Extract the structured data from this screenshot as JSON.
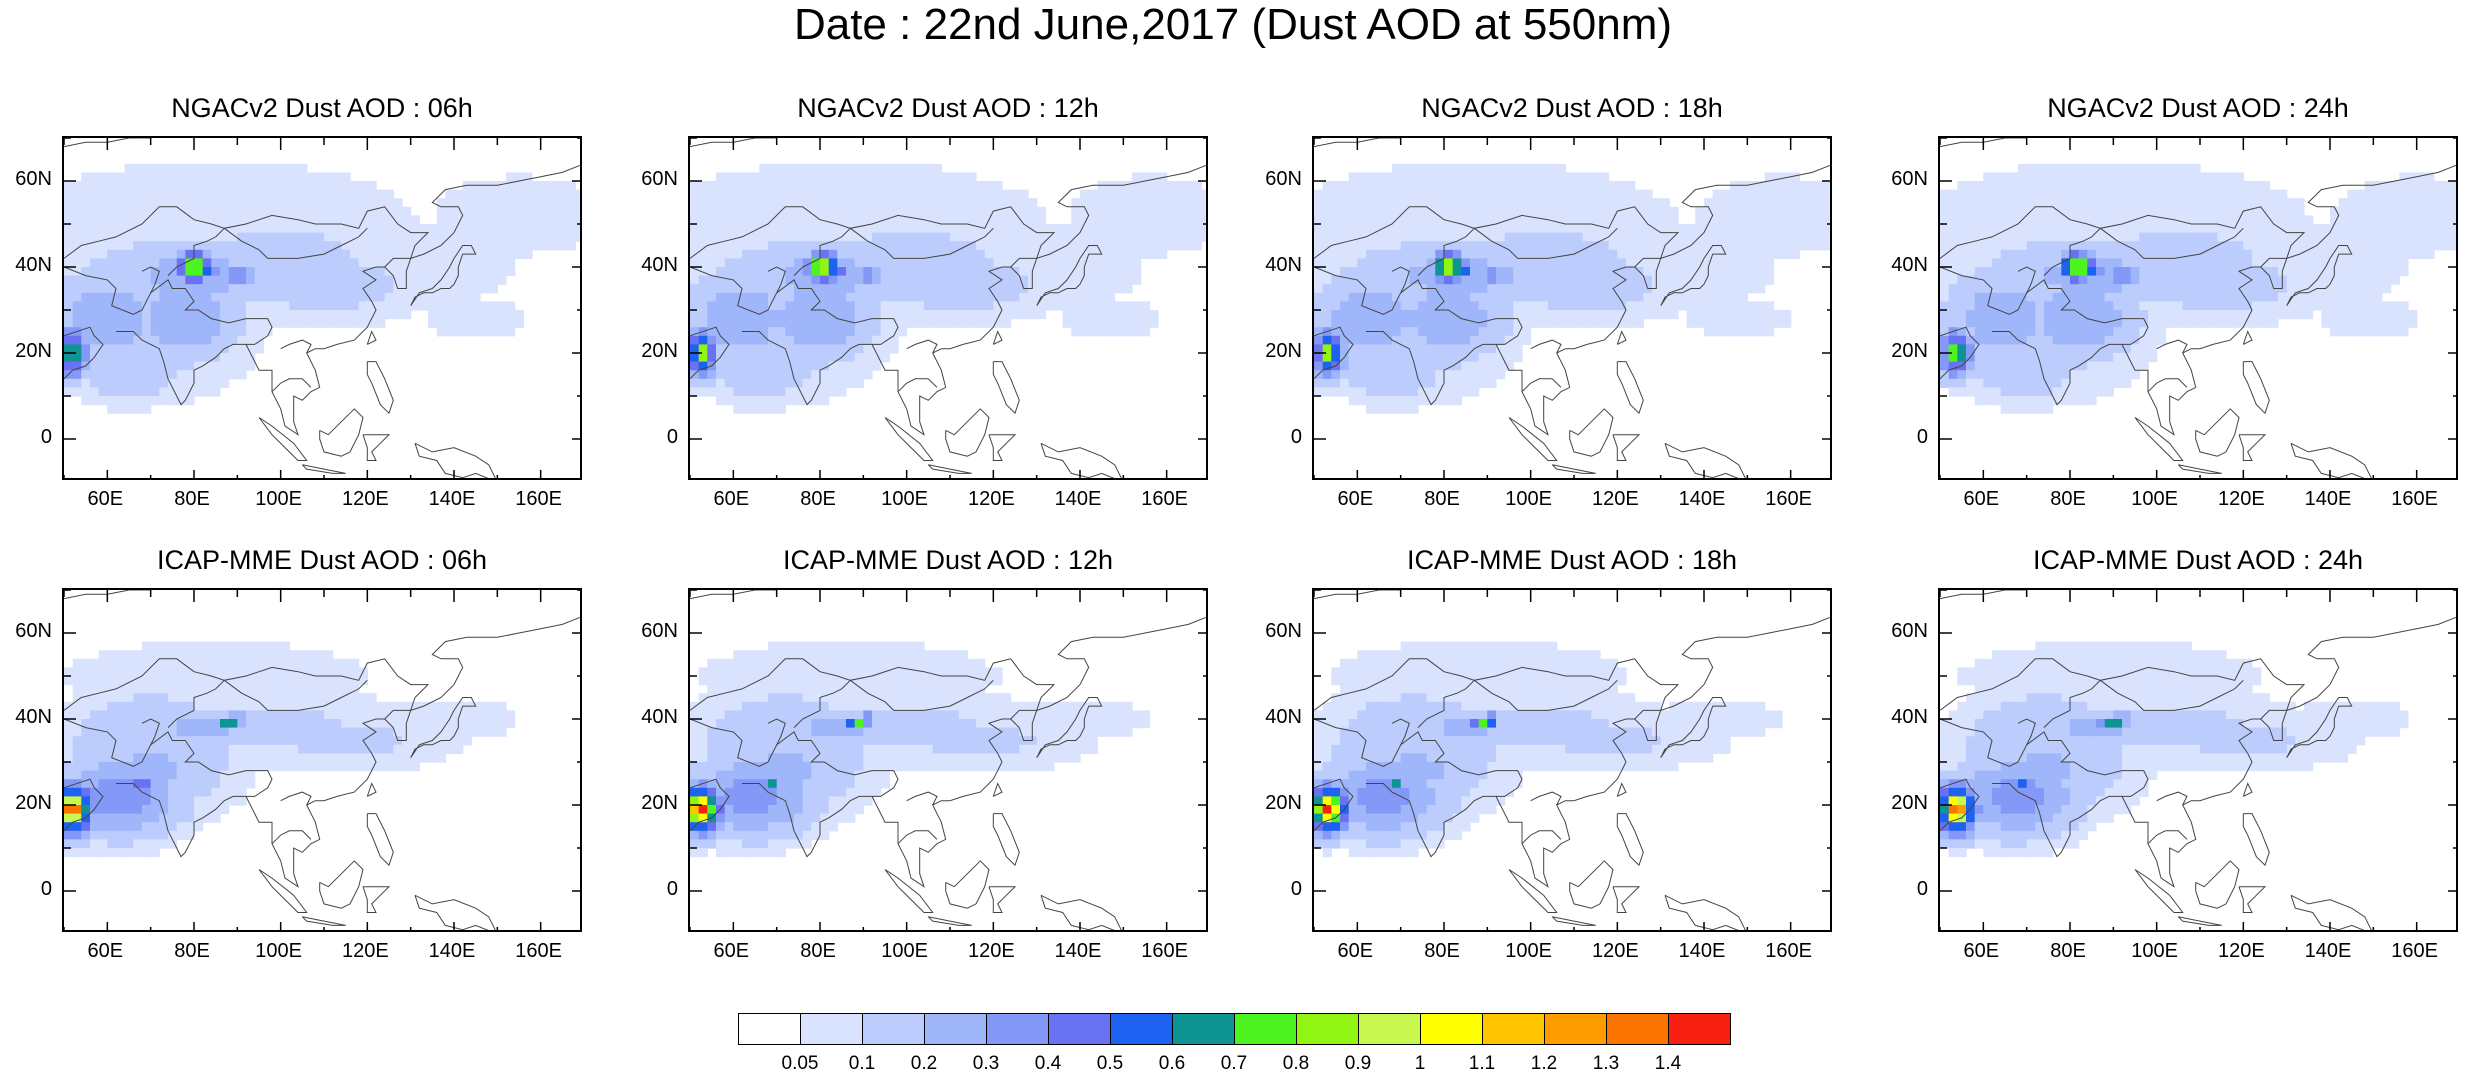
{
  "title": "Date : 22nd June,2017 (Dust AOD at 550nm)",
  "panels": [
    {
      "title": "NGACv2 Dust AOD : 06h",
      "model": "ngac"
    },
    {
      "title": "NGACv2 Dust AOD : 12h",
      "model": "ngac"
    },
    {
      "title": "NGACv2 Dust AOD : 18h",
      "model": "ngac"
    },
    {
      "title": "NGACv2 Dust AOD : 24h",
      "model": "ngac"
    },
    {
      "title": "ICAP-MME Dust AOD : 06h",
      "model": "icap"
    },
    {
      "title": "ICAP-MME Dust AOD : 12h",
      "model": "icap"
    },
    {
      "title": "ICAP-MME Dust AOD : 18h",
      "model": "icap"
    },
    {
      "title": "ICAP-MME Dust AOD : 24h",
      "model": "icap"
    }
  ],
  "lat_ticks": [
    {
      "value": 60,
      "label": "60N"
    },
    {
      "value": 40,
      "label": "40N"
    },
    {
      "value": 20,
      "label": "20N"
    },
    {
      "value": 0,
      "label": "0"
    }
  ],
  "lon_ticks": [
    {
      "value": 60,
      "label": "60E"
    },
    {
      "value": 80,
      "label": "80E"
    },
    {
      "value": 100,
      "label": "100E"
    },
    {
      "value": 120,
      "label": "120E"
    },
    {
      "value": 140,
      "label": "140E"
    },
    {
      "value": 160,
      "label": "160E"
    }
  ],
  "map_extent": {
    "lon": [
      50,
      170
    ],
    "lat": [
      -10,
      70
    ]
  },
  "colorbar": {
    "labels": [
      "0.05",
      "0.1",
      "0.2",
      "0.3",
      "0.4",
      "0.5",
      "0.6",
      "0.7",
      "0.8",
      "0.9",
      "1",
      "1.1",
      "1.2",
      "1.3",
      "1.4"
    ],
    "colors": [
      "#ffffff",
      "#d9e3fd",
      "#bccdfd",
      "#9fb6fb",
      "#8498f8",
      "#6872f2",
      "#1e62f2",
      "#0f9494",
      "#4ef41f",
      "#92f413",
      "#c8f850",
      "#ffff00",
      "#ffc400",
      "#ff9c00",
      "#fb7400",
      "#f82011"
    ]
  }
}
